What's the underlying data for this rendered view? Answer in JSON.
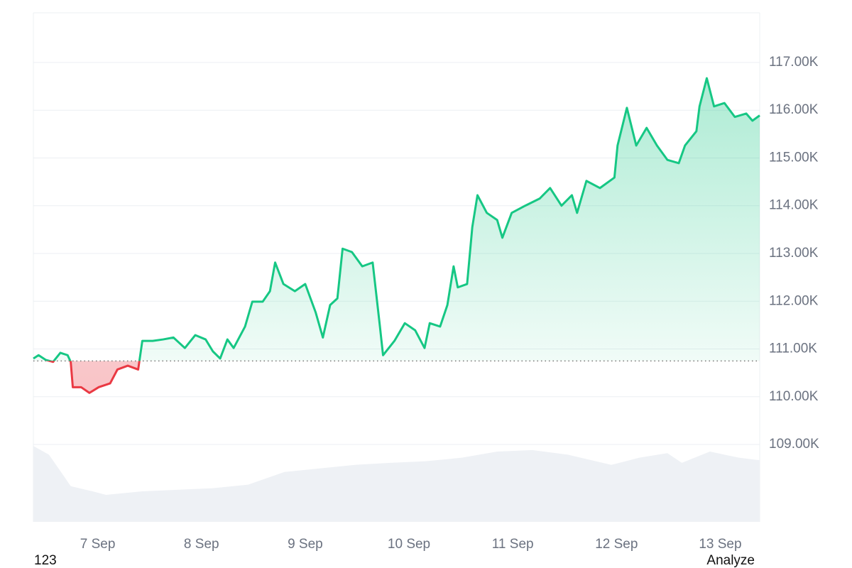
{
  "chart_data": {
    "type": "line",
    "x": [
      6.38,
      6.43,
      6.5,
      6.57,
      6.64,
      6.71,
      6.74,
      6.76,
      6.84,
      6.92,
      7.01,
      7.12,
      7.19,
      7.29,
      7.39,
      7.43,
      7.53,
      7.63,
      7.73,
      7.84,
      7.94,
      8.04,
      8.11,
      8.18,
      8.25,
      8.31,
      8.42,
      8.49,
      8.59,
      8.66,
      8.71,
      8.79,
      8.9,
      9.0,
      9.1,
      9.17,
      9.24,
      9.31,
      9.36,
      9.45,
      9.55,
      9.65,
      9.72,
      9.75,
      9.86,
      9.96,
      10.06,
      10.15,
      10.2,
      10.3,
      10.37,
      10.43,
      10.47,
      10.56,
      10.61,
      10.66,
      10.75,
      10.85,
      10.9,
      10.99,
      11.12,
      11.26,
      11.36,
      11.47,
      11.57,
      11.62,
      11.71,
      11.84,
      11.98,
      12.01,
      12.1,
      12.19,
      12.29,
      12.39,
      12.49,
      12.6,
      12.66,
      12.77,
      12.8,
      12.87,
      12.94,
      13.04,
      13.14,
      13.25,
      13.31,
      13.38
    ],
    "values": [
      110800,
      110870,
      110770,
      110730,
      110920,
      110870,
      110730,
      110200,
      110200,
      110080,
      110200,
      110280,
      110570,
      110650,
      110570,
      111170,
      111170,
      111200,
      111240,
      111020,
      111290,
      111200,
      110950,
      110800,
      111200,
      111020,
      111470,
      111990,
      111990,
      112210,
      112810,
      112360,
      112210,
      112360,
      111770,
      111240,
      111920,
      112060,
      113100,
      113030,
      112730,
      112810,
      111470,
      110870,
      111170,
      111540,
      111390,
      111020,
      111540,
      111470,
      111920,
      112730,
      112290,
      112360,
      113550,
      114220,
      113850,
      113700,
      113330,
      113850,
      114000,
      114150,
      114370,
      114000,
      114220,
      113850,
      114520,
      114370,
      114590,
      115260,
      116050,
      115260,
      115630,
      115260,
      114960,
      114890,
      115260,
      115560,
      116080,
      116670,
      116080,
      116150,
      115860,
      115930,
      115780,
      115890
    ],
    "baseline": 110750,
    "color_up": "#16c784",
    "color_down": "#ea3943",
    "xlim": [
      6.38,
      13.38
    ],
    "xticks": [
      {
        "value": 7,
        "label": "7 Sep"
      },
      {
        "value": 8,
        "label": "8 Sep"
      },
      {
        "value": 9,
        "label": "9 Sep"
      },
      {
        "value": 10,
        "label": "10 Sep"
      },
      {
        "value": 11,
        "label": "11 Sep"
      },
      {
        "value": 12,
        "label": "12 Sep"
      },
      {
        "value": 13,
        "label": "13 Sep"
      }
    ],
    "ylim": [
      107380,
      118040
    ],
    "yticks": [
      {
        "value": 109000,
        "label": "109.00K"
      },
      {
        "value": 110000,
        "label": "110.00K"
      },
      {
        "value": 111000,
        "label": "111.00K"
      },
      {
        "value": 112000,
        "label": "112.00K"
      },
      {
        "value": 113000,
        "label": "113.00K"
      },
      {
        "value": 114000,
        "label": "114.00K"
      },
      {
        "value": 115000,
        "label": "115.00K"
      },
      {
        "value": 116000,
        "label": "116.00K"
      },
      {
        "value": 117000,
        "label": "117.00K"
      }
    ],
    "grid": true,
    "volume": {
      "x": [
        6.38,
        6.53,
        6.67,
        6.74,
        6.95,
        7.08,
        7.43,
        8.11,
        8.45,
        8.8,
        9.14,
        9.48,
        9.82,
        10.16,
        10.51,
        10.85,
        11.19,
        11.53,
        11.95,
        12.22,
        12.49,
        12.63,
        12.9,
        13.18,
        13.38
      ],
      "values": [
        14.9,
        13.2,
        9.1,
        7.0,
        6.0,
        5.3,
        6.0,
        6.6,
        7.3,
        9.8,
        10.5,
        11.2,
        11.6,
        11.9,
        12.6,
        13.8,
        14.1,
        13.2,
        11.2,
        12.6,
        13.5,
        11.6,
        13.8,
        12.6,
        12.1
      ],
      "color": "#eef1f5",
      "axis": "y2"
    },
    "y2lim": [
      0,
      100
    ],
    "footer_left": "123",
    "footer_right": "Analyze"
  }
}
